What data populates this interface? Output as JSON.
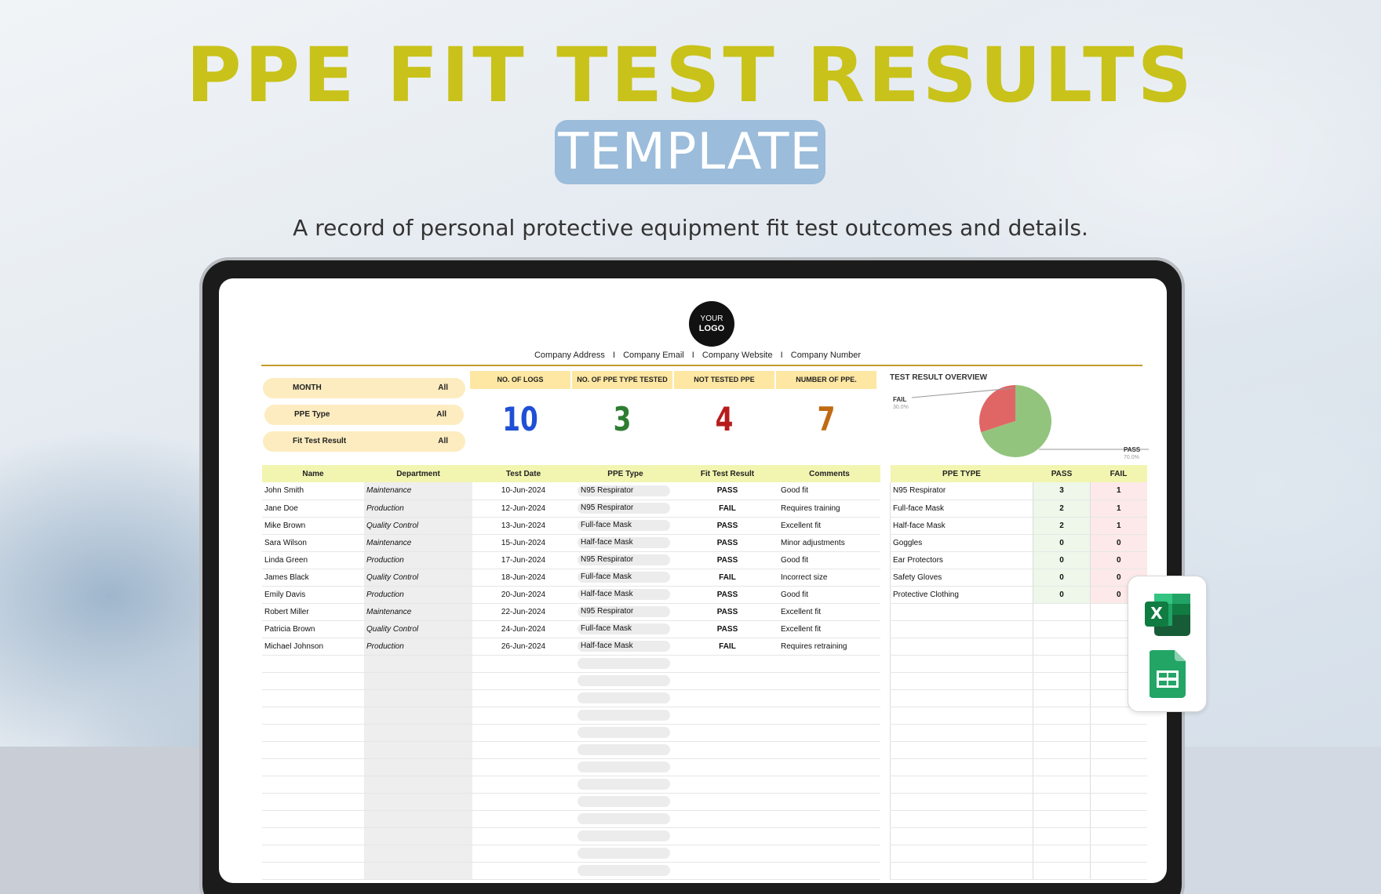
{
  "hero": {
    "title": "PPE FIT TEST RESULTS",
    "subtitle_pill": "TEMPLATE",
    "description": "A record of personal protective equipment fit test outcomes and details."
  },
  "sheet": {
    "logo": {
      "line1": "YOUR",
      "line2": "LOGO"
    },
    "contact": [
      "Company Address",
      "Company Email",
      "Company Website",
      "Company Number"
    ],
    "contact_separator": "I",
    "filters": [
      {
        "label": "MONTH",
        "value": "All"
      },
      {
        "label": "PPE Type",
        "value": "All"
      },
      {
        "label": "Fit Test Result",
        "value": "All"
      }
    ],
    "stats": [
      {
        "label": "NO. OF LOGS",
        "value": "10",
        "color": "#1f4fd6"
      },
      {
        "label": "NO. OF PPE TYPE TESTED",
        "value": "3",
        "color": "#2e7d32"
      },
      {
        "label": "NOT TESTED PPE",
        "value": "4",
        "color": "#b71c1c"
      },
      {
        "label": "NUMBER OF PPE.",
        "value": "7",
        "color": "#c06a12"
      }
    ],
    "chart_title": "TEST RESULT OVERVIEW",
    "chart_data": {
      "type": "pie",
      "title": "TEST RESULT OVERVIEW",
      "series": [
        {
          "name": "FAIL",
          "value": 30.0,
          "label": "30.0%",
          "color": "#e06666"
        },
        {
          "name": "PASS",
          "value": 70.0,
          "label": "70.0%",
          "color": "#93c47d"
        }
      ]
    },
    "main_table": {
      "headers": [
        "Name",
        "Department",
        "Test Date",
        "PPE Type",
        "Fit Test Result",
        "Comments"
      ],
      "rows": [
        [
          "John Smith",
          "Maintenance",
          "10-Jun-2024",
          "N95 Respirator",
          "PASS",
          "Good fit"
        ],
        [
          "Jane Doe",
          "Production",
          "12-Jun-2024",
          "N95 Respirator",
          "FAIL",
          "Requires training"
        ],
        [
          "Mike Brown",
          "Quality Control",
          "13-Jun-2024",
          "Full-face Mask",
          "PASS",
          "Excellent fit"
        ],
        [
          "Sara Wilson",
          "Maintenance",
          "15-Jun-2024",
          "Half-face Mask",
          "PASS",
          "Minor adjustments"
        ],
        [
          "Linda Green",
          "Production",
          "17-Jun-2024",
          "N95 Respirator",
          "PASS",
          "Good fit"
        ],
        [
          "James Black",
          "Quality Control",
          "18-Jun-2024",
          "Full-face Mask",
          "FAIL",
          "Incorrect size"
        ],
        [
          "Emily Davis",
          "Production",
          "20-Jun-2024",
          "Half-face Mask",
          "PASS",
          "Good fit"
        ],
        [
          "Robert Miller",
          "Maintenance",
          "22-Jun-2024",
          "N95 Respirator",
          "PASS",
          "Excellent fit"
        ],
        [
          "Patricia Brown",
          "Quality Control",
          "24-Jun-2024",
          "Full-face Mask",
          "PASS",
          "Excellent fit"
        ],
        [
          "Michael Johnson",
          "Production",
          "26-Jun-2024",
          "Half-face Mask",
          "FAIL",
          "Requires retraining"
        ]
      ]
    },
    "summary_table": {
      "headers": [
        "PPE TYPE",
        "PASS",
        "FAIL"
      ],
      "rows": [
        [
          "N95 Respirator",
          "3",
          "1"
        ],
        [
          "Full-face Mask",
          "2",
          "1"
        ],
        [
          "Half-face Mask",
          "2",
          "1"
        ],
        [
          "Goggles",
          "0",
          "0"
        ],
        [
          "Ear Protectors",
          "0",
          "0"
        ],
        [
          "Safety Gloves",
          "0",
          "0"
        ],
        [
          "Protective Clothing",
          "0",
          "0"
        ]
      ]
    },
    "colors": {
      "pass": "#2e7d32",
      "fail": "#b71c1c",
      "header": "#f1f5b0",
      "gold": "#c49a2a"
    }
  },
  "apps": [
    {
      "name": "excel-icon",
      "letter": "X"
    },
    {
      "name": "google-sheets-icon"
    }
  ]
}
